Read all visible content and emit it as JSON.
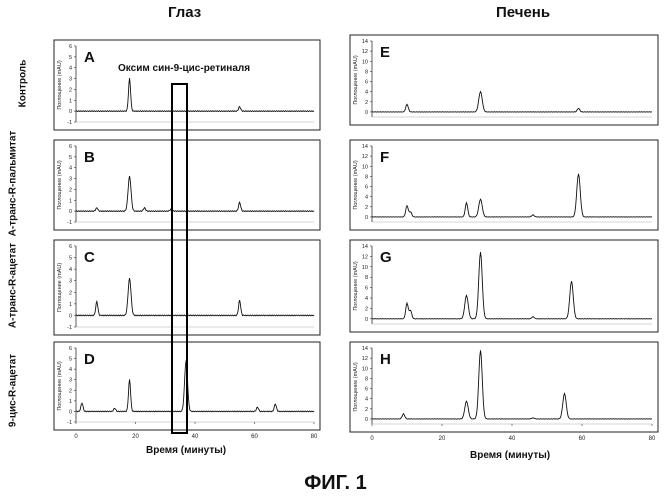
{
  "headers": {
    "left": "Глаз",
    "right": "Печень"
  },
  "row_labels": [
    "Контроль",
    "А-транс-R-пальмитат",
    "А-транс-R-ацетат",
    "9-цис-R-ацетат"
  ],
  "annotation": "Оксим син-9-цис-ретиналя",
  "xlabel": "Время (минуты)",
  "ylabel": "Поглощение (mAU)",
  "figure_label": "ФИГ. 1",
  "chart_data": [
    {
      "type": "line",
      "panel": "A",
      "column": "Глаз",
      "ylabel": "Поглощение (mAU)",
      "ylim": [
        -1,
        6
      ],
      "yticks": [
        -1,
        0,
        1,
        2,
        3,
        4,
        5,
        6
      ],
      "xlim": [
        0,
        80
      ],
      "xticks": [],
      "peaks": [
        [
          18,
          3.0
        ],
        [
          55,
          0.4
        ]
      ],
      "baseline": 0
    },
    {
      "type": "line",
      "panel": "B",
      "column": "Глаз",
      "ylabel": "Поглощение (mAU)",
      "ylim": [
        -1,
        6
      ],
      "yticks": [
        -1,
        0,
        1,
        2,
        3,
        4,
        5,
        6
      ],
      "xlim": [
        0,
        80
      ],
      "xticks": [],
      "peaks": [
        [
          7,
          0.3
        ],
        [
          18,
          3.2
        ],
        [
          23,
          0.3
        ],
        [
          32,
          0.2
        ],
        [
          55,
          0.8
        ]
      ],
      "baseline": 0
    },
    {
      "type": "line",
      "panel": "C",
      "column": "Глаз",
      "ylabel": "Поглощение (mAU)",
      "ylim": [
        -1,
        6
      ],
      "yticks": [
        -1,
        0,
        1,
        2,
        3,
        4,
        5,
        6
      ],
      "xlim": [
        0,
        80
      ],
      "xticks": [],
      "peaks": [
        [
          7,
          1.2
        ],
        [
          18,
          3.2
        ],
        [
          55,
          1.3
        ]
      ],
      "baseline": 0
    },
    {
      "type": "line",
      "panel": "D",
      "column": "Глаз",
      "ylabel": "Поглощение (mAU)",
      "ylim": [
        -1,
        6
      ],
      "yticks": [
        -1,
        0,
        1,
        2,
        3,
        4,
        5,
        6
      ],
      "xlim": [
        0,
        80
      ],
      "xticks": [
        0,
        20,
        40,
        60,
        80
      ],
      "peaks": [
        [
          2,
          0.8
        ],
        [
          13,
          0.3
        ],
        [
          18,
          3.0
        ],
        [
          37,
          4.8
        ],
        [
          61,
          0.4
        ],
        [
          67,
          0.7
        ]
      ],
      "baseline": 0
    },
    {
      "type": "line",
      "panel": "E",
      "column": "Печень",
      "ylabel": "Поглощение (mAU)",
      "ylim": [
        -1,
        14
      ],
      "yticks": [
        0,
        2,
        4,
        6,
        8,
        10,
        12,
        14
      ],
      "xlim": [
        0,
        80
      ],
      "xticks": [],
      "peaks": [
        [
          10,
          1.5
        ],
        [
          31,
          4.0
        ],
        [
          59,
          0.7
        ]
      ],
      "baseline": 0
    },
    {
      "type": "line",
      "panel": "F",
      "column": "Печень",
      "ylabel": "Поглощение (mAU)",
      "ylim": [
        -1,
        14
      ],
      "yticks": [
        0,
        2,
        4,
        6,
        8,
        10,
        12,
        14
      ],
      "xlim": [
        0,
        80
      ],
      "xticks": [],
      "peaks": [
        [
          10,
          2.2
        ],
        [
          11,
          1.0
        ],
        [
          27,
          2.8
        ],
        [
          31,
          3.5
        ],
        [
          46,
          0.4
        ],
        [
          59,
          8.5
        ]
      ],
      "baseline": 0
    },
    {
      "type": "line",
      "panel": "G",
      "column": "Печень",
      "ylabel": "Поглощение (mAU)",
      "ylim": [
        -1,
        14
      ],
      "yticks": [
        0,
        2,
        4,
        6,
        8,
        10,
        12,
        14
      ],
      "xlim": [
        0,
        80
      ],
      "xticks": [],
      "peaks": [
        [
          10,
          3.0
        ],
        [
          11,
          1.6
        ],
        [
          27,
          4.5
        ],
        [
          31,
          12.8
        ],
        [
          46,
          0.4
        ],
        [
          57,
          7.2
        ]
      ],
      "baseline": 0
    },
    {
      "type": "line",
      "panel": "H",
      "column": "Печень",
      "ylabel": "Поглощение (mAU)",
      "ylim": [
        -1,
        14
      ],
      "yticks": [
        0,
        2,
        4,
        6,
        8,
        10,
        12,
        14
      ],
      "xlim": [
        0,
        80
      ],
      "xticks": [
        0,
        20,
        40,
        60,
        80
      ],
      "peaks": [
        [
          9,
          1.0
        ],
        [
          27,
          3.5
        ],
        [
          31,
          13.5
        ],
        [
          46,
          0.2
        ],
        [
          55,
          5.0
        ]
      ],
      "baseline": 0
    }
  ]
}
